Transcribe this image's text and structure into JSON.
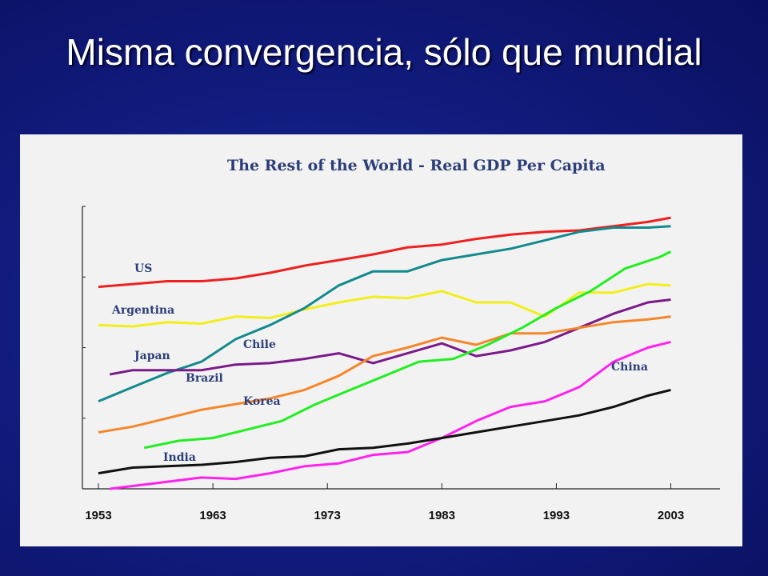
{
  "slide": {
    "title": "Misma convergencia, sólo que mundial",
    "background": "#101a7a"
  },
  "chart_data": {
    "type": "line",
    "title": "The Rest of the World - Real GDP Per Capita",
    "xlabel": "",
    "ylabel": "",
    "xlim": [
      1953,
      2003
    ],
    "ylim": [
      0,
      1
    ],
    "x_ticks": [
      "1953",
      "1963",
      "1973",
      "1983",
      "1993",
      "2003"
    ],
    "x_tick_values": [
      1953,
      1963,
      1973,
      1983,
      1993,
      2003
    ],
    "grid": false,
    "legend": "inline",
    "series": [
      {
        "name": "US",
        "color": "#ee2020",
        "x": [
          1953,
          1956,
          1959,
          1962,
          1965,
          1968,
          1971,
          1974,
          1977,
          1980,
          1983,
          1986,
          1989,
          1992,
          1995,
          1998,
          2001,
          2003
        ],
        "y": [
          0.715,
          0.725,
          0.735,
          0.735,
          0.745,
          0.765,
          0.79,
          0.81,
          0.83,
          0.855,
          0.865,
          0.885,
          0.9,
          0.91,
          0.915,
          0.93,
          0.945,
          0.96
        ]
      },
      {
        "name": "Argentina",
        "color": "#f2ee1a",
        "x": [
          1953,
          1956,
          1959,
          1962,
          1965,
          1968,
          1971,
          1974,
          1977,
          1980,
          1983,
          1986,
          1989,
          1992,
          1995,
          1998,
          2001,
          2003
        ],
        "y": [
          0.58,
          0.575,
          0.59,
          0.585,
          0.61,
          0.605,
          0.635,
          0.66,
          0.68,
          0.675,
          0.7,
          0.66,
          0.66,
          0.61,
          0.695,
          0.695,
          0.725,
          0.72
        ]
      },
      {
        "name": "Chile",
        "color": "#148a8c",
        "x": [
          1953,
          1956,
          1959,
          1962,
          1965,
          1968,
          1971,
          1974,
          1977,
          1980,
          1983,
          1986,
          1989,
          1992,
          1995,
          1998,
          2001,
          2003
        ],
        "y": [
          0.31,
          0.36,
          0.41,
          0.45,
          0.53,
          0.58,
          0.64,
          0.72,
          0.77,
          0.77,
          0.81,
          0.83,
          0.85,
          0.88,
          0.91,
          0.925,
          0.925,
          0.93
        ]
      },
      {
        "name": "Japan",
        "color": "#7a1a8a",
        "x": [
          1954,
          1956,
          1959,
          1962,
          1965,
          1968,
          1971,
          1974,
          1977,
          1980,
          1983,
          1986,
          1989,
          1992,
          1995,
          1998,
          2001,
          2003
        ],
        "y": [
          0.405,
          0.42,
          0.42,
          0.42,
          0.44,
          0.445,
          0.46,
          0.48,
          0.445,
          0.48,
          0.515,
          0.47,
          0.49,
          0.52,
          0.57,
          0.62,
          0.66,
          0.67
        ]
      },
      {
        "name": "Brazil",
        "color": "#f5862a",
        "x": [
          1953,
          1956,
          1959,
          1962,
          1965,
          1968,
          1971,
          1974,
          1977,
          1980,
          1983,
          1986,
          1989,
          1992,
          1995,
          1998,
          2001,
          2003
        ],
        "y": [
          0.2,
          0.22,
          0.25,
          0.28,
          0.3,
          0.32,
          0.35,
          0.4,
          0.47,
          0.5,
          0.535,
          0.51,
          0.55,
          0.55,
          0.57,
          0.59,
          0.6,
          0.61
        ]
      },
      {
        "name": "Korea",
        "color": "#22ee22",
        "x": [
          1957,
          1960,
          1963,
          1966,
          1969,
          1972,
          1975,
          1978,
          1981,
          1984,
          1987,
          1990,
          1993,
          1996,
          1999,
          2002,
          2003
        ],
        "y": [
          0.145,
          0.17,
          0.18,
          0.21,
          0.24,
          0.3,
          0.35,
          0.4,
          0.45,
          0.46,
          0.51,
          0.57,
          0.64,
          0.7,
          0.78,
          0.82,
          0.84
        ]
      },
      {
        "name": "China",
        "color": "#ff22ee",
        "x": [
          1954,
          1956,
          1959,
          1962,
          1965,
          1968,
          1971,
          1974,
          1977,
          1980,
          1983,
          1986,
          1989,
          1992,
          1995,
          1998,
          2001,
          2003
        ],
        "y": [
          0.0,
          0.01,
          0.025,
          0.04,
          0.035,
          0.055,
          0.08,
          0.09,
          0.12,
          0.13,
          0.18,
          0.24,
          0.29,
          0.31,
          0.36,
          0.45,
          0.5,
          0.52
        ]
      },
      {
        "name": "India",
        "color": "#111111",
        "x": [
          1953,
          1956,
          1959,
          1962,
          1965,
          1968,
          1971,
          1974,
          1977,
          1980,
          1983,
          1986,
          1989,
          1992,
          1995,
          1998,
          2001,
          2003
        ],
        "y": [
          0.055,
          0.075,
          0.08,
          0.085,
          0.095,
          0.11,
          0.115,
          0.14,
          0.145,
          0.16,
          0.18,
          0.2,
          0.22,
          0.24,
          0.26,
          0.29,
          0.33,
          0.35
        ]
      }
    ]
  }
}
